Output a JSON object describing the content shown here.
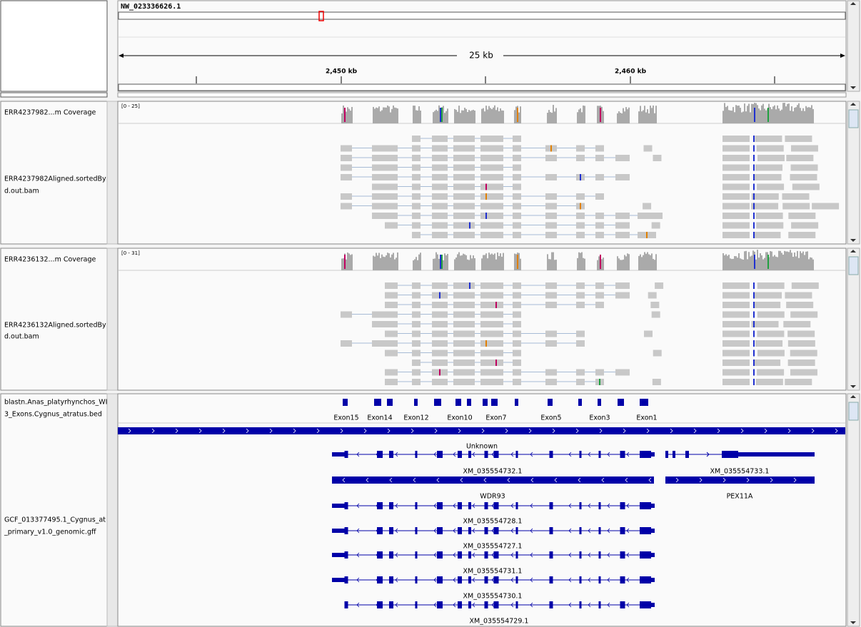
{
  "header": {
    "locus": "NW_023336626.1",
    "span": "25 kb",
    "ruler_labels": [
      "2,450 kb",
      "2,460 kb"
    ]
  },
  "tracks": [
    {
      "coverage_name": "ERR4237982...m Coverage",
      "range": "[0 - 25]",
      "alignment_name": [
        "ERR4237982Aligned.sortedBy",
        "d.out.bam"
      ]
    },
    {
      "coverage_name": "ERR4236132...m Coverage",
      "range": "[0 - 31]",
      "alignment_name": [
        "ERR4236132Aligned.sortedBy",
        "d.out.bam"
      ]
    }
  ],
  "features": {
    "bed_name": [
      "blastn.Anas_platyrhynchos_WI",
      "3_Exons.Cygnus_atratus.bed"
    ],
    "exons": [
      "Exon15",
      "Exon14",
      "Exon12",
      "Exon10",
      "Exon7",
      "Exon5",
      "Exon3",
      "Exon1"
    ],
    "gff_name": [
      "GCF_013377495.1_Cygnus_at",
      "_primary_v1.0_genomic.gff"
    ],
    "genes": [
      "Unknown",
      "XM_035554732.1",
      "XM_035554733.1",
      "WDR93",
      "PEX11A",
      "XM_035554728.1",
      "XM_035554727.1",
      "XM_035554731.1",
      "XM_035554730.1",
      "XM_035554729.1"
    ]
  }
}
